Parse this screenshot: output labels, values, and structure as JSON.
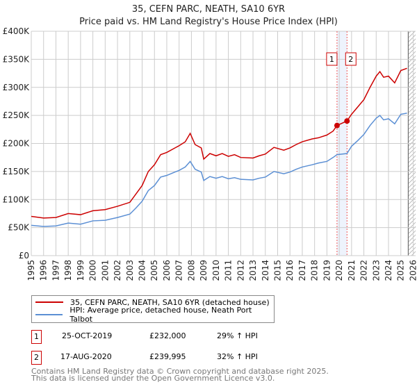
{
  "chart_data": {
    "type": "line",
    "title": "35, CEFN PARC, NEATH, SA10 6YR",
    "subtitle": "Price paid vs. HM Land Registry's House Price Index (HPI)",
    "ylim": [
      0,
      400000
    ],
    "xlim": [
      1995,
      2026.2
    ],
    "y_ticks": [
      "£0",
      "£50K",
      "£100K",
      "£150K",
      "£200K",
      "£250K",
      "£300K",
      "£350K",
      "£400K"
    ],
    "x_ticks": [
      "1995",
      "1996",
      "1997",
      "1998",
      "1999",
      "2000",
      "2001",
      "2002",
      "2003",
      "2004",
      "2005",
      "2006",
      "2007",
      "2008",
      "2009",
      "2010",
      "2011",
      "2012",
      "2013",
      "2014",
      "2015",
      "2016",
      "2017",
      "2018",
      "2019",
      "2020",
      "2021",
      "2022",
      "2023",
      "2024",
      "2025",
      "2026"
    ],
    "series": [
      {
        "name": "35, CEFN PARC, NEATH, SA10 6YR (detached house)",
        "color": "#cc0000",
        "x": [
          1995,
          1996,
          1997,
          1998,
          1999,
          2000,
          2001,
          2002,
          2003,
          2003.5,
          2004,
          2004.5,
          2005,
          2005.5,
          2006,
          2007,
          2007.5,
          2007.9,
          2008.3,
          2008.8,
          2009,
          2009.5,
          2010,
          2010.5,
          2011,
          2011.5,
          2012,
          2013,
          2013.5,
          2014,
          2014.7,
          2015.5,
          2016,
          2016.5,
          2017,
          2017.8,
          2018.3,
          2019,
          2019.5,
          2019.82,
          2020.63,
          2021,
          2021.5,
          2022,
          2022.5,
          2023,
          2023.3,
          2023.6,
          2024,
          2024.5,
          2025,
          2025.5
        ],
        "y": [
          70000,
          67000,
          68000,
          75000,
          73000,
          80000,
          82000,
          88000,
          95000,
          110000,
          125000,
          150000,
          162000,
          180000,
          184000,
          196000,
          203000,
          218000,
          198000,
          192000,
          172000,
          182000,
          178000,
          182000,
          177000,
          180000,
          175000,
          174000,
          178000,
          181000,
          193000,
          188000,
          192000,
          198000,
          203000,
          208000,
          210000,
          215000,
          222000,
          232000,
          240000,
          252000,
          265000,
          278000,
          300000,
          320000,
          328000,
          318000,
          320000,
          308000,
          330000,
          334000
        ]
      },
      {
        "name": "HPI: Average price, detached house, Neath Port Talbot",
        "color": "#5b8fd4",
        "x": [
          1995,
          1996,
          1997,
          1998,
          1999,
          2000,
          2001,
          2002,
          2003,
          2003.5,
          2004,
          2004.5,
          2005,
          2005.5,
          2006,
          2007,
          2007.5,
          2007.9,
          2008.3,
          2008.8,
          2009,
          2009.5,
          2010,
          2010.5,
          2011,
          2011.5,
          2012,
          2013,
          2013.5,
          2014,
          2014.7,
          2015.5,
          2016,
          2016.5,
          2017,
          2017.8,
          2018.3,
          2019,
          2019.5,
          2019.82,
          2020.63,
          2021,
          2021.5,
          2022,
          2022.5,
          2023,
          2023.3,
          2023.6,
          2024,
          2024.5,
          2025,
          2025.5
        ],
        "y": [
          54000,
          52000,
          53000,
          58000,
          56000,
          62000,
          63000,
          68000,
          74000,
          85000,
          97000,
          116000,
          125000,
          140000,
          143000,
          152000,
          158000,
          168000,
          154000,
          149000,
          134000,
          141000,
          138000,
          141000,
          137000,
          139000,
          136000,
          135000,
          138000,
          140000,
          150000,
          146000,
          149000,
          154000,
          158000,
          162000,
          165000,
          168000,
          175000,
          180000,
          182000,
          195000,
          205000,
          216000,
          232000,
          245000,
          250000,
          242000,
          244000,
          235000,
          252000,
          254000
        ]
      }
    ],
    "markers": [
      {
        "label": "1",
        "x": 2019.82,
        "y": 232000
      },
      {
        "label": "2",
        "x": 2020.63,
        "y": 239995
      }
    ],
    "forecast_from": 2025.6
  },
  "legend": {
    "items": [
      "35, CEFN PARC, NEATH, SA10 6YR (detached house)",
      "HPI: Average price, detached house, Neath Port Talbot"
    ]
  },
  "transactions": [
    {
      "num": "1",
      "date": "25-OCT-2019",
      "price": "£232,000",
      "hpi": "29% ↑ HPI"
    },
    {
      "num": "2",
      "date": "17-AUG-2020",
      "price": "£239,995",
      "hpi": "32% ↑ HPI"
    }
  ],
  "footer": [
    "Contains HM Land Registry data © Crown copyright and database right 2025.",
    "This data is licensed under the Open Government Licence v3.0."
  ]
}
